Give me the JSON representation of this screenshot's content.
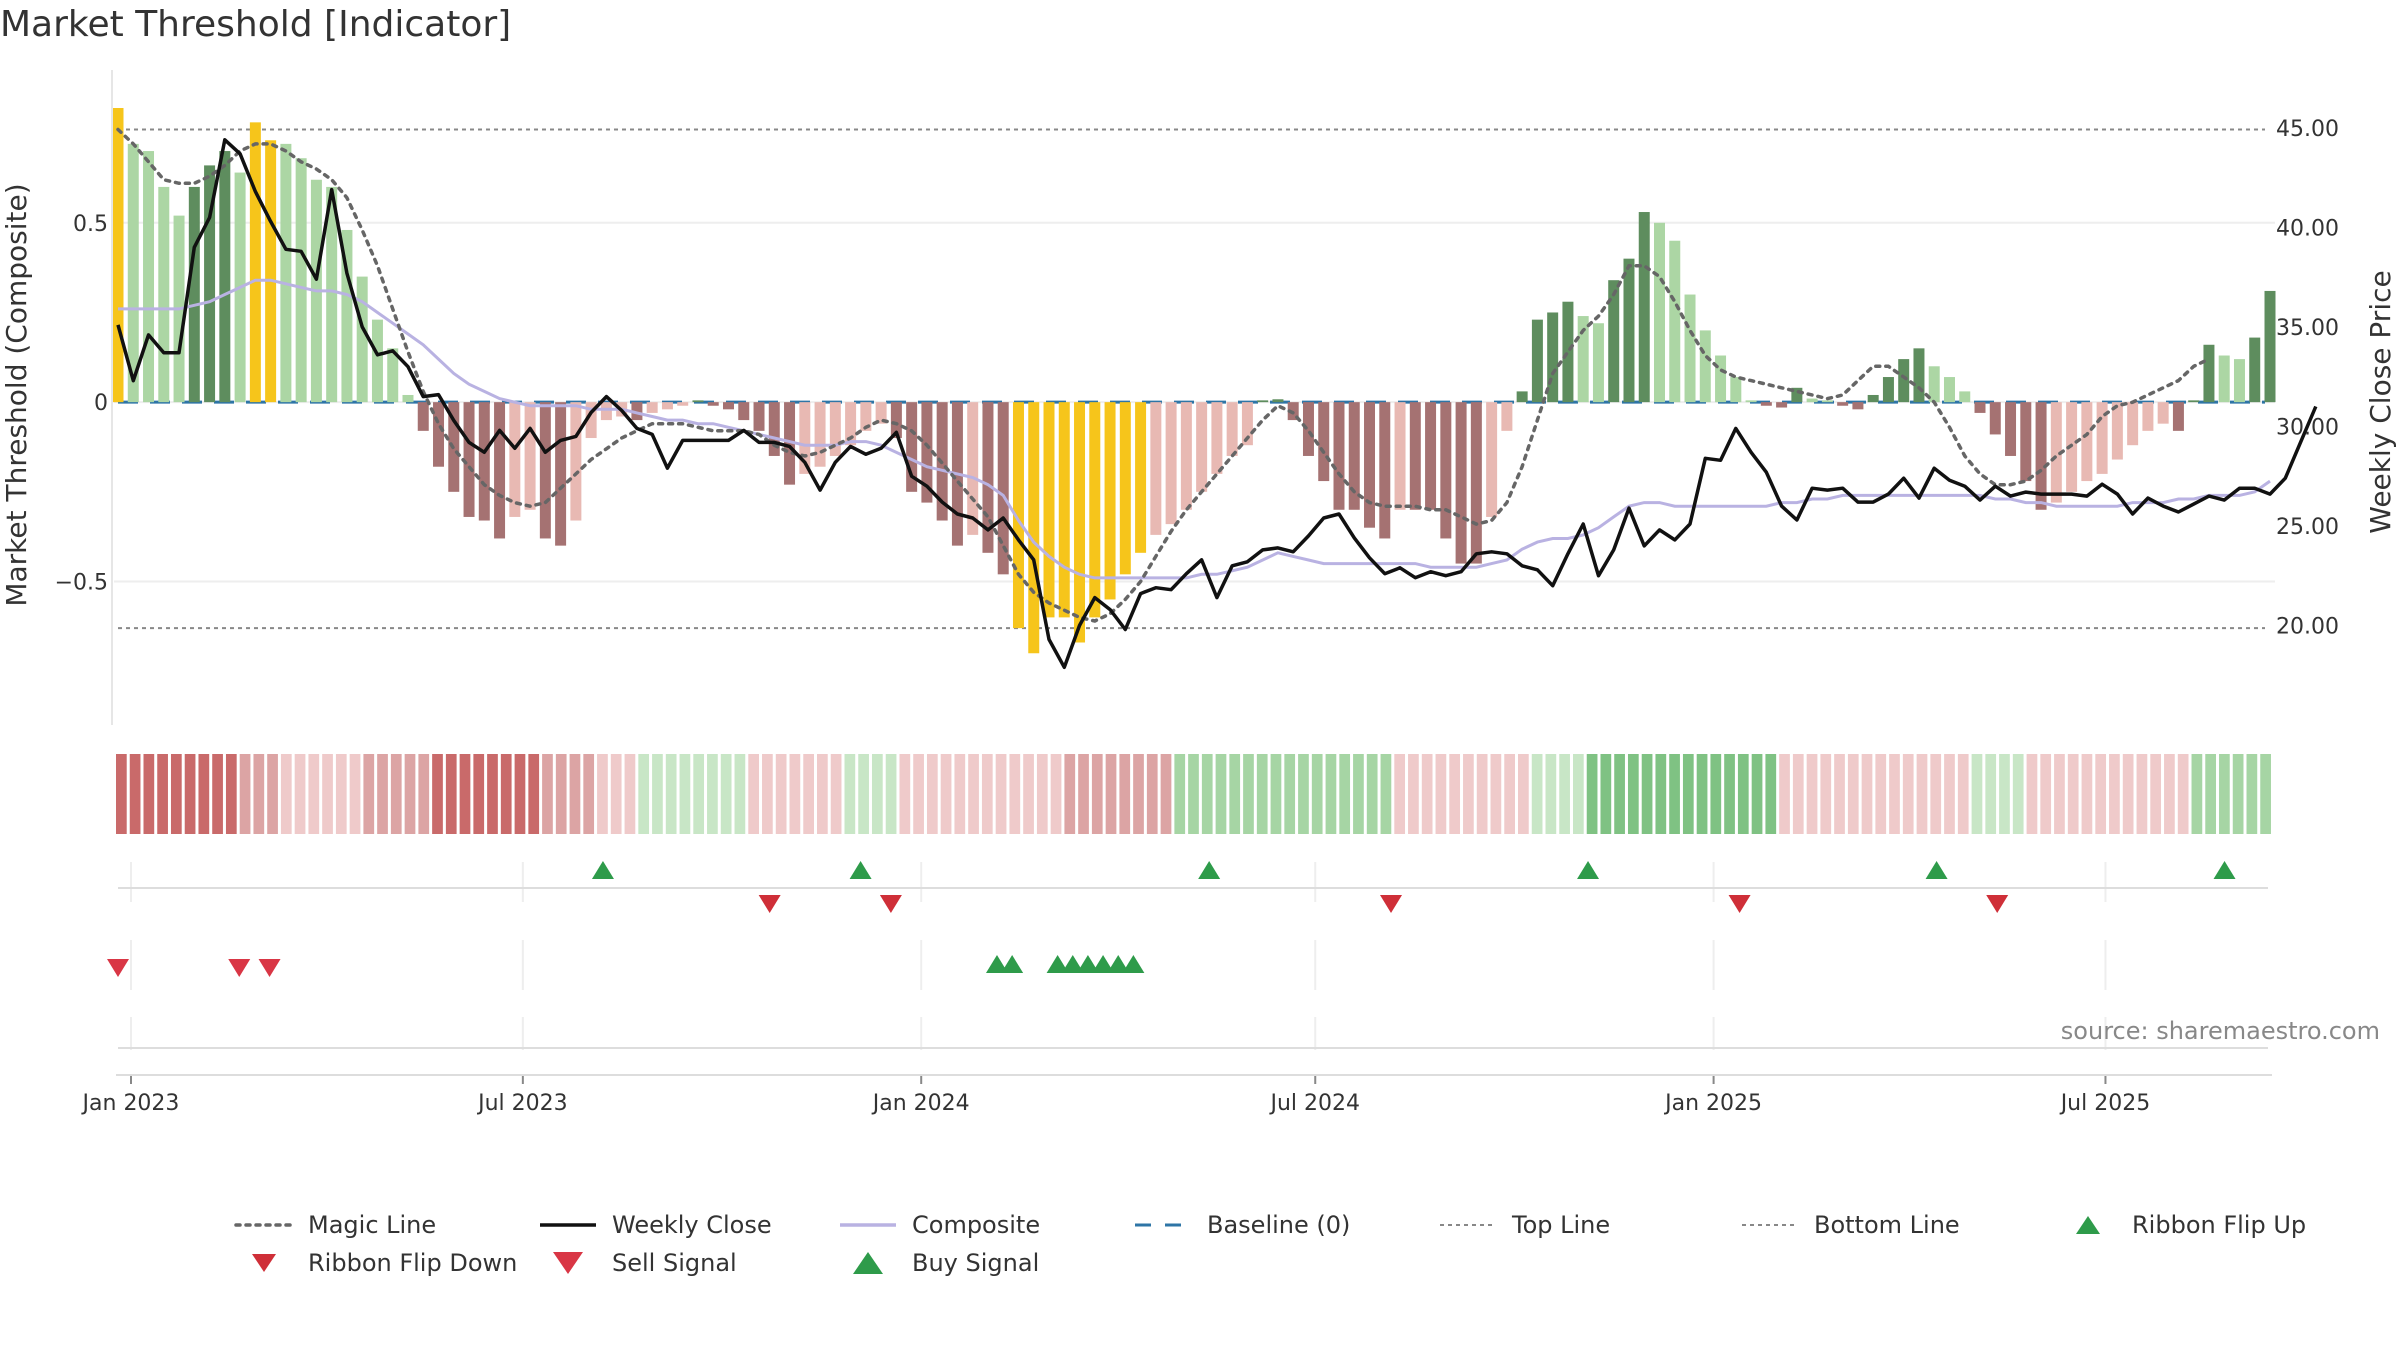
{
  "title": "Market Threshold [Indicator]",
  "source": "source: sharemaestro.com",
  "colors": {
    "dark_green": "#5e8d5e",
    "light_green": "#acd6a4",
    "dark_red": "#a57272",
    "light_red": "#e8b9b3",
    "yellow": "#f6c51b",
    "composite": "#b9b2e2",
    "baseline": "#2e75a6",
    "close": "#111111",
    "magic": "#666666",
    "buy": "#2e9b4a",
    "sell": "#d93645"
  },
  "chart_data": {
    "type": "bar",
    "title": "Market Threshold [Indicator]",
    "ylabel": "Market Threshold (Composite)",
    "y2label": "Weekly Close Price",
    "ylim": [
      -0.9,
      0.82
    ],
    "y_ticks": [
      {
        "value": 0.5,
        "label": "0.5"
      },
      {
        "value": 0,
        "label": "0"
      },
      {
        "value": -0.5,
        "label": "−0.5"
      }
    ],
    "y2lim": [
      15.0,
      46.0
    ],
    "y2_ticks": [
      "45.00",
      "40.00",
      "35.00",
      "30.00",
      "25.00",
      "20.00"
    ],
    "top_line": 0.76,
    "bottom_line": -0.63,
    "baseline": 0,
    "x_start": "2022-12-26",
    "x_end": "2025-09-15",
    "x_ticks": [
      {
        "date": "2023-01-01",
        "label": "Jan 2023"
      },
      {
        "date": "2023-07-01",
        "label": "Jul 2023"
      },
      {
        "date": "2024-01-01",
        "label": "Jan 2024"
      },
      {
        "date": "2024-07-01",
        "label": "Jul 2024"
      },
      {
        "date": "2025-01-01",
        "label": "Jan 2025"
      },
      {
        "date": "2025-07-01",
        "label": "Jul 2025"
      }
    ],
    "histogram": [
      0.82,
      0.72,
      0.7,
      0.6,
      0.52,
      0.6,
      0.66,
      0.7,
      0.64,
      0.78,
      0.73,
      0.72,
      0.68,
      0.62,
      0.6,
      0.48,
      0.35,
      0.23,
      0.15,
      0.02,
      -0.08,
      -0.18,
      -0.25,
      -0.32,
      -0.33,
      -0.38,
      -0.32,
      -0.3,
      -0.38,
      -0.4,
      -0.33,
      -0.1,
      -0.05,
      -0.04,
      -0.05,
      -0.03,
      -0.02,
      -0.01,
      0.005,
      -0.01,
      -0.02,
      -0.05,
      -0.08,
      -0.15,
      -0.23,
      -0.2,
      -0.18,
      -0.15,
      -0.12,
      -0.08,
      -0.06,
      -0.1,
      -0.25,
      -0.28,
      -0.33,
      -0.4,
      -0.37,
      -0.42,
      -0.48,
      -0.63,
      -0.7,
      -0.6,
      -0.6,
      -0.67,
      -0.6,
      -0.55,
      -0.48,
      -0.42,
      -0.37,
      -0.34,
      -0.3,
      -0.25,
      -0.2,
      -0.15,
      -0.12,
      0.005,
      0.008,
      -0.05,
      -0.15,
      -0.22,
      -0.3,
      -0.3,
      -0.35,
      -0.38,
      -0.3,
      -0.3,
      -0.3,
      -0.38,
      -0.45,
      -0.45,
      -0.32,
      -0.08,
      0.03,
      0.23,
      0.25,
      0.28,
      0.24,
      0.22,
      0.34,
      0.4,
      0.53,
      0.5,
      0.45,
      0.3,
      0.2,
      0.13,
      0.07,
      0.005,
      -0.01,
      -0.015,
      0.04,
      0.01,
      0.005,
      -0.01,
      -0.02,
      0.02,
      0.07,
      0.12,
      0.15,
      0.1,
      0.07,
      0.03,
      -0.03,
      -0.09,
      -0.15,
      -0.22,
      -0.3,
      -0.28,
      -0.25,
      -0.22,
      -0.2,
      -0.16,
      -0.12,
      -0.08,
      -0.06,
      -0.08,
      0.005,
      0.16,
      0.13,
      0.12,
      0.18,
      0.31
    ],
    "composite": [
      0.26,
      0.26,
      0.26,
      0.26,
      0.26,
      0.27,
      0.28,
      0.3,
      0.32,
      0.34,
      0.34,
      0.33,
      0.32,
      0.31,
      0.31,
      0.3,
      0.28,
      0.25,
      0.22,
      0.19,
      0.16,
      0.12,
      0.08,
      0.05,
      0.03,
      0.01,
      0.0,
      -0.01,
      -0.01,
      -0.01,
      -0.01,
      -0.02,
      -0.02,
      -0.02,
      -0.03,
      -0.04,
      -0.05,
      -0.05,
      -0.06,
      -0.06,
      -0.07,
      -0.08,
      -0.09,
      -0.1,
      -0.11,
      -0.12,
      -0.12,
      -0.12,
      -0.11,
      -0.11,
      -0.12,
      -0.14,
      -0.16,
      -0.18,
      -0.19,
      -0.2,
      -0.21,
      -0.23,
      -0.26,
      -0.33,
      -0.39,
      -0.43,
      -0.46,
      -0.48,
      -0.49,
      -0.49,
      -0.49,
      -0.49,
      -0.49,
      -0.49,
      -0.49,
      -0.48,
      -0.48,
      -0.47,
      -0.46,
      -0.44,
      -0.42,
      -0.43,
      -0.44,
      -0.45,
      -0.45,
      -0.45,
      -0.45,
      -0.45,
      -0.45,
      -0.45,
      -0.46,
      -0.46,
      -0.46,
      -0.46,
      -0.45,
      -0.44,
      -0.41,
      -0.39,
      -0.38,
      -0.38,
      -0.37,
      -0.35,
      -0.32,
      -0.29,
      -0.28,
      -0.28,
      -0.29,
      -0.29,
      -0.29,
      -0.29,
      -0.29,
      -0.29,
      -0.29,
      -0.28,
      -0.28,
      -0.27,
      -0.27,
      -0.26,
      -0.26,
      -0.26,
      -0.26,
      -0.26,
      -0.26,
      -0.26,
      -0.26,
      -0.26,
      -0.26,
      -0.27,
      -0.27,
      -0.28,
      -0.28,
      -0.29,
      -0.29,
      -0.29,
      -0.29,
      -0.29,
      -0.28,
      -0.28,
      -0.28,
      -0.27,
      -0.27,
      -0.26,
      -0.26,
      -0.26,
      -0.25,
      -0.22
    ],
    "magic": [
      0.76,
      0.72,
      0.67,
      0.62,
      0.61,
      0.61,
      0.63,
      0.66,
      0.7,
      0.72,
      0.72,
      0.7,
      0.67,
      0.65,
      0.62,
      0.57,
      0.48,
      0.38,
      0.26,
      0.14,
      0.03,
      -0.06,
      -0.13,
      -0.18,
      -0.23,
      -0.26,
      -0.28,
      -0.29,
      -0.28,
      -0.24,
      -0.2,
      -0.16,
      -0.13,
      -0.1,
      -0.08,
      -0.06,
      -0.06,
      -0.06,
      -0.07,
      -0.08,
      -0.08,
      -0.08,
      -0.09,
      -0.12,
      -0.14,
      -0.15,
      -0.14,
      -0.12,
      -0.1,
      -0.07,
      -0.05,
      -0.06,
      -0.08,
      -0.12,
      -0.17,
      -0.22,
      -0.27,
      -0.32,
      -0.4,
      -0.48,
      -0.53,
      -0.56,
      -0.58,
      -0.6,
      -0.61,
      -0.59,
      -0.55,
      -0.5,
      -0.43,
      -0.36,
      -0.3,
      -0.25,
      -0.2,
      -0.15,
      -0.1,
      -0.05,
      -0.01,
      -0.03,
      -0.08,
      -0.14,
      -0.2,
      -0.25,
      -0.28,
      -0.29,
      -0.29,
      -0.29,
      -0.3,
      -0.3,
      -0.32,
      -0.34,
      -0.33,
      -0.28,
      -0.18,
      -0.05,
      0.08,
      0.14,
      0.2,
      0.24,
      0.3,
      0.38,
      0.38,
      0.35,
      0.28,
      0.2,
      0.13,
      0.09,
      0.07,
      0.06,
      0.05,
      0.04,
      0.03,
      0.02,
      0.01,
      0.02,
      0.06,
      0.1,
      0.1,
      0.07,
      0.04,
      0.0,
      -0.07,
      -0.15,
      -0.2,
      -0.23,
      -0.23,
      -0.22,
      -0.19,
      -0.15,
      -0.12,
      -0.09,
      -0.04,
      -0.01,
      0.0,
      0.02,
      0.04,
      0.06,
      0.1,
      0.12
    ],
    "close": [
      35.1,
      32.3,
      34.6,
      33.7,
      33.7,
      39.0,
      40.5,
      44.4,
      43.7,
      41.8,
      40.3,
      38.9,
      38.8,
      37.4,
      41.9,
      37.7,
      35.0,
      33.6,
      33.8,
      33.0,
      31.5,
      31.6,
      30.3,
      29.2,
      28.7,
      29.8,
      28.9,
      29.9,
      28.7,
      29.3,
      29.5,
      30.7,
      31.5,
      30.8,
      29.9,
      29.6,
      27.9,
      29.3,
      29.3,
      29.3,
      29.3,
      29.8,
      29.2,
      29.2,
      29.0,
      28.2,
      26.8,
      28.2,
      29.0,
      28.6,
      28.9,
      29.7,
      27.5,
      27.0,
      26.2,
      25.6,
      25.4,
      24.8,
      25.4,
      24.3,
      23.3,
      19.3,
      17.9,
      20.0,
      21.4,
      20.8,
      19.8,
      21.6,
      21.9,
      21.8,
      22.6,
      23.3,
      21.4,
      23.0,
      23.2,
      23.8,
      23.9,
      23.7,
      24.5,
      25.4,
      25.6,
      24.4,
      23.4,
      22.6,
      22.9,
      22.4,
      22.7,
      22.5,
      22.7,
      23.6,
      23.7,
      23.6,
      23.0,
      22.8,
      22.0,
      23.6,
      25.1,
      22.5,
      23.8,
      25.9,
      24.0,
      24.8,
      24.3,
      25.1,
      28.4,
      28.3,
      29.9,
      28.7,
      27.7,
      26.0,
      25.3,
      26.9,
      26.8,
      26.9,
      26.2,
      26.2,
      26.6,
      27.4,
      26.4,
      27.9,
      27.3,
      27.0,
      26.3,
      27.0,
      26.5,
      26.7,
      26.6,
      26.6,
      26.6,
      26.5,
      27.1,
      26.6,
      25.6,
      26.4,
      26.0,
      25.7,
      26.1,
      26.5,
      26.3,
      26.9,
      26.9,
      26.6,
      27.4,
      29.2,
      31.0
    ],
    "ribbon": [
      "r3",
      "r3",
      "r3",
      "r3",
      "r3",
      "r3",
      "r3",
      "r3",
      "r3",
      "r2",
      "r2",
      "r2",
      "r1",
      "r1",
      "r1",
      "r1",
      "r1",
      "r1",
      "r2",
      "r2",
      "r2",
      "r2",
      "r2",
      "r3",
      "r3",
      "r3",
      "r3",
      "r3",
      "r3",
      "r3",
      "r3",
      "r2",
      "r2",
      "r2",
      "r2",
      "r1",
      "r1",
      "r1",
      "g1",
      "g1",
      "g1",
      "g1",
      "g1",
      "g1",
      "g1",
      "g1",
      "r1",
      "r1",
      "r1",
      "r1",
      "r1",
      "r1",
      "r1",
      "g1",
      "g1",
      "g1",
      "g1",
      "r1",
      "r1",
      "r1",
      "r1",
      "r1",
      "r1",
      "r1",
      "r1",
      "r1",
      "r1",
      "r1",
      "r1",
      "r2",
      "r2",
      "r2",
      "r2",
      "r2",
      "r2",
      "r2",
      "r2",
      "g2",
      "g2",
      "g2",
      "g2",
      "g2",
      "g2",
      "g2",
      "g2",
      "g2",
      "g2",
      "g2",
      "g2",
      "g2",
      "g2",
      "g2",
      "g2",
      "r1",
      "r1",
      "r1",
      "r1",
      "r1",
      "r1",
      "r1",
      "r1",
      "r1",
      "r1",
      "g1",
      "g1",
      "g1",
      "g1",
      "g3",
      "g3",
      "g3",
      "g3",
      "g3",
      "g3",
      "g3",
      "g3",
      "g3",
      "g3",
      "g3",
      "g3",
      "g3",
      "g3",
      "r1",
      "r1",
      "r1",
      "r1",
      "r1",
      "r1",
      "r1",
      "r1",
      "r1",
      "r1",
      "r1",
      "r1",
      "r1",
      "r1",
      "g1",
      "g1",
      "g1",
      "g1",
      "r1",
      "r1",
      "r1",
      "r1",
      "r1",
      "r1",
      "r1",
      "r1",
      "r1",
      "r1",
      "r1",
      "r1",
      "g2",
      "g2",
      "g2",
      "g2",
      "g2",
      "g2"
    ],
    "ribbon_flip_up": [
      "2023-08-07",
      "2023-12-04",
      "2024-05-13",
      "2024-11-04",
      "2025-04-14",
      "2025-08-25"
    ],
    "ribbon_flip_down": [
      "2023-10-23",
      "2023-12-18",
      "2024-08-05",
      "2025-01-13",
      "2025-05-12"
    ],
    "sell_signals": [
      "2022-12-26",
      "2023-02-20",
      "2023-03-06"
    ],
    "buy_signals": [
      "2024-02-05",
      "2024-02-12",
      "2024-03-04",
      "2024-03-11",
      "2024-03-18",
      "2024-03-25",
      "2024-04-01",
      "2024-04-08"
    ],
    "legend": [
      {
        "label": "Magic Line",
        "kind": "dotted"
      },
      {
        "label": "Weekly Close",
        "kind": "solid"
      },
      {
        "label": "Composite",
        "kind": "composite"
      },
      {
        "label": "Baseline (0)",
        "kind": "dashed"
      },
      {
        "label": "Top Line",
        "kind": "finedot"
      },
      {
        "label": "Bottom Line",
        "kind": "finedot"
      },
      {
        "label": "Ribbon Flip Up",
        "kind": "tri-up-flip"
      },
      {
        "label": "Ribbon Flip Down",
        "kind": "tri-down-flip"
      },
      {
        "label": "Sell Signal",
        "kind": "tri-down-sell"
      },
      {
        "label": "Buy Signal",
        "kind": "tri-up-buy"
      }
    ]
  }
}
